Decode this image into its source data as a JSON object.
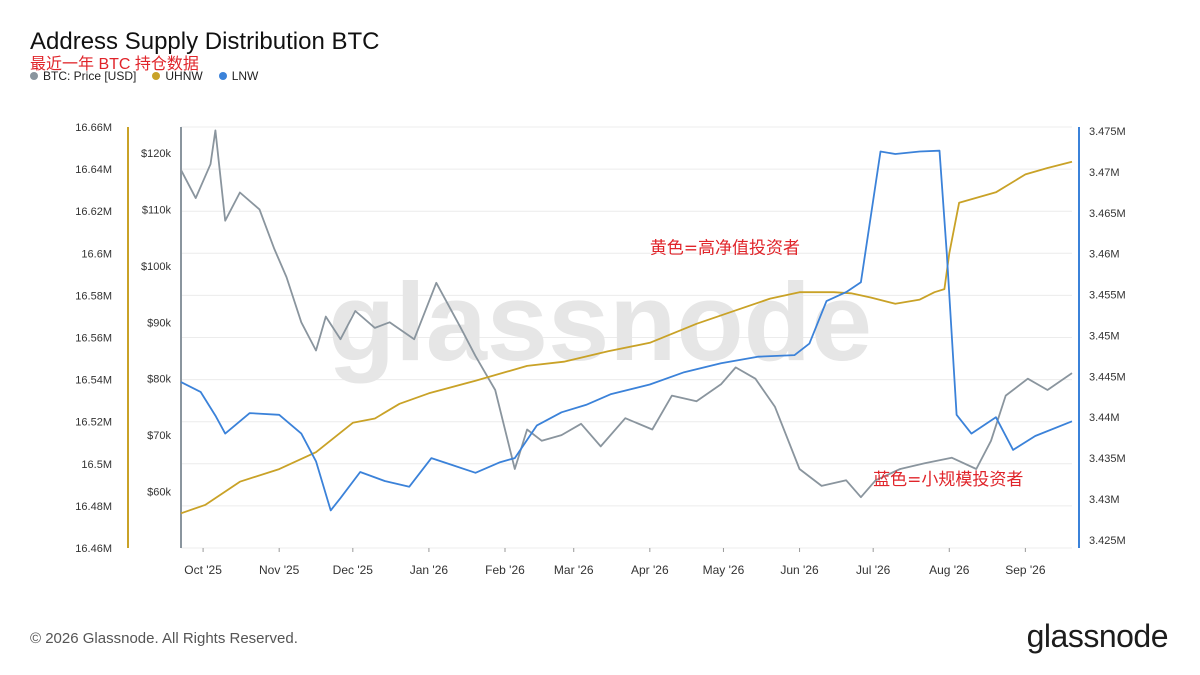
{
  "chart_data": {
    "type": "line",
    "title": "Address Supply Distribution BTC",
    "subtitle": "最近一年 BTC 持仓数据",
    "watermark": "glassnode",
    "x_ticks": [
      "Oct '25",
      "Nov '25",
      "Dec '25",
      "Jan '26",
      "Feb '26",
      "Mar '26",
      "Apr '26",
      "May '26",
      "Jun '26",
      "Jul '26",
      "Aug '26",
      "Sep '26"
    ],
    "x_range": [
      "2025-09-22",
      "2026-09-20"
    ],
    "axes": {
      "uhnw": {
        "min": 16.46,
        "max": 16.66,
        "ticks": [
          "16.66M",
          "16.64M",
          "16.62M",
          "16.6M",
          "16.58M",
          "16.56M",
          "16.54M",
          "16.52M",
          "16.5M",
          "16.48M",
          "16.46M"
        ],
        "color": "#c9a227"
      },
      "price": {
        "min": 50,
        "max": 124.6,
        "ticks": [
          "$120k",
          "$110k",
          "$100k",
          "$90k",
          "$80k",
          "$70k",
          "$60k"
        ],
        "color": "#8a959e"
      },
      "lnw": {
        "min": 3.424,
        "max": 3.4755,
        "ticks": [
          "3.475M",
          "3.47M",
          "3.465M",
          "3.46M",
          "3.455M",
          "3.45M",
          "3.445M",
          "3.44M",
          "3.435M",
          "3.43M",
          "3.425M"
        ],
        "color": "#3b82d9"
      }
    },
    "legend_position": "top-left",
    "grid": "horizontal",
    "series": [
      {
        "name": "BTC: Price [USD]",
        "axis": "price",
        "color": "#8a959e",
        "x": [
          "2025-09-22",
          "2025-09-28",
          "2025-10-04",
          "2025-10-06",
          "2025-10-10",
          "2025-10-16",
          "2025-10-24",
          "2025-10-30",
          "2025-11-04",
          "2025-11-10",
          "2025-11-16",
          "2025-11-20",
          "2025-11-26",
          "2025-12-02",
          "2025-12-10",
          "2025-12-16",
          "2025-12-26",
          "2026-01-04",
          "2026-01-14",
          "2026-01-20",
          "2026-01-28",
          "2026-02-05",
          "2026-02-10",
          "2026-02-16",
          "2026-02-24",
          "2026-03-04",
          "2026-03-12",
          "2026-03-22",
          "2026-04-02",
          "2026-04-10",
          "2026-04-20",
          "2026-04-30",
          "2026-05-06",
          "2026-05-14",
          "2026-05-22",
          "2026-06-01",
          "2026-06-10",
          "2026-06-20",
          "2026-06-26",
          "2026-07-02",
          "2026-07-12",
          "2026-07-22",
          "2026-08-02",
          "2026-08-12",
          "2026-08-18",
          "2026-08-24",
          "2026-09-02",
          "2026-09-10",
          "2026-09-20"
        ],
        "values": [
          117,
          112,
          118,
          124,
          108,
          113,
          110,
          103,
          98,
          90,
          85,
          91,
          87,
          92,
          89,
          90,
          87,
          97,
          89,
          84,
          78,
          64,
          71,
          69,
          70,
          72,
          68,
          73,
          71,
          77,
          76,
          79,
          82,
          80,
          75,
          64,
          61,
          62,
          59,
          62,
          64,
          65,
          66,
          64,
          69,
          77,
          80,
          78,
          81
        ]
      },
      {
        "name": "UHNW",
        "axis": "uhnw",
        "color": "#c9a227",
        "x": [
          "2025-09-22",
          "2025-10-02",
          "2025-10-16",
          "2025-11-01",
          "2025-11-16",
          "2025-12-01",
          "2025-12-10",
          "2025-12-20",
          "2026-01-01",
          "2026-01-20",
          "2026-02-10",
          "2026-02-25",
          "2026-03-15",
          "2026-04-01",
          "2026-04-20",
          "2026-05-05",
          "2026-05-20",
          "2026-06-01",
          "2026-06-15",
          "2026-06-22",
          "2026-06-30",
          "2026-07-10",
          "2026-07-20",
          "2026-07-26",
          "2026-07-30",
          "2026-08-01",
          "2026-08-05",
          "2026-08-20",
          "2026-09-01",
          "2026-09-10",
          "2026-09-20"
        ],
        "values": [
          16.4765,
          16.4805,
          16.4915,
          16.4975,
          16.5055,
          16.5195,
          16.5215,
          16.5285,
          16.5335,
          16.5395,
          16.5465,
          16.5485,
          16.5535,
          16.5575,
          16.5665,
          16.5725,
          16.5785,
          16.5815,
          16.5815,
          16.581,
          16.579,
          16.576,
          16.578,
          16.5815,
          16.583,
          16.6,
          16.624,
          16.629,
          16.6375,
          16.6405,
          16.6435
        ]
      },
      {
        "name": "LNW",
        "axis": "lnw",
        "color": "#3b82d9",
        "x": [
          "2025-09-22",
          "2025-09-30",
          "2025-10-06",
          "2025-10-10",
          "2025-10-20",
          "2025-11-01",
          "2025-11-10",
          "2025-11-16",
          "2025-11-22",
          "2025-11-26",
          "2025-12-04",
          "2025-12-14",
          "2025-12-24",
          "2026-01-02",
          "2026-01-10",
          "2026-01-20",
          "2026-01-30",
          "2026-02-05",
          "2026-02-14",
          "2026-02-24",
          "2026-03-06",
          "2026-03-16",
          "2026-04-01",
          "2026-04-15",
          "2026-04-30",
          "2026-05-15",
          "2026-05-30",
          "2026-06-05",
          "2026-06-12",
          "2026-06-20",
          "2026-06-26",
          "2026-07-04",
          "2026-07-10",
          "2026-07-20",
          "2026-07-28",
          "2026-07-31",
          "2026-08-04",
          "2026-08-10",
          "2026-08-20",
          "2026-08-27",
          "2026-09-05",
          "2026-09-20"
        ],
        "values": [
          3.4443,
          3.4431,
          3.4402,
          3.438,
          3.4405,
          3.4403,
          3.438,
          3.4346,
          3.4286,
          3.4301,
          3.4333,
          3.4322,
          3.4315,
          3.435,
          3.4342,
          3.4332,
          3.4345,
          3.435,
          3.439,
          3.4406,
          3.4415,
          3.4428,
          3.444,
          3.4455,
          3.4466,
          3.4474,
          3.4476,
          3.449,
          3.4542,
          3.4553,
          3.4565,
          3.4725,
          3.4722,
          3.4725,
          3.4726,
          3.46,
          3.4403,
          3.438,
          3.44,
          3.436,
          3.4377,
          3.4395
        ]
      }
    ],
    "annotations": [
      {
        "text": "黄色=高净值投资者",
        "x": "2026-04-01",
        "y_axis": "uhnw",
        "y": 16.6,
        "color": "#e0242a"
      },
      {
        "text": "蓝色=小规模投资者",
        "x": "2026-07-01",
        "y_axis": "uhnw",
        "y": 16.49,
        "color": "#e0242a"
      }
    ]
  },
  "footer": {
    "copyright": "© 2026 Glassnode. All Rights Reserved.",
    "brand": "glassnode"
  }
}
